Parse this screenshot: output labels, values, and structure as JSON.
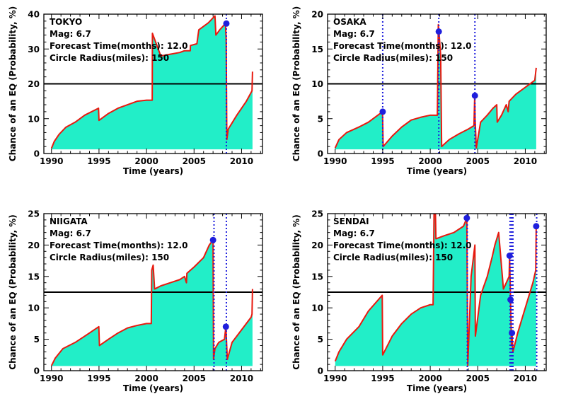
{
  "colors": {
    "fill": "#22eec8",
    "line": "#e8190f",
    "marker": "#1f1fdd",
    "vline": "#1f1fdd",
    "threshold": "#000000"
  },
  "chart_data": [
    {
      "type": "area",
      "xlabel": "Time (years)",
      "ylabel": "Chance of an EQ (Probability, %)",
      "xlim": [
        1989.2,
        2012.2
      ],
      "ylim": [
        0,
        40
      ],
      "xticks": [
        1990,
        1995,
        2000,
        2005,
        2010
      ],
      "yticks": [
        0,
        10,
        20,
        30,
        40
      ],
      "annotations": [
        "TOKYO",
        "Mag: 6.7",
        "Forecast Time(months): 12.0",
        "Circle Radius(miles): 150"
      ],
      "threshold": 20,
      "vlines": [
        2008.4
      ],
      "markers": [
        {
          "x": 2008.4,
          "y": 37.3
        }
      ],
      "series": [
        {
          "x": [
            1990.0,
            1990.3,
            1990.8,
            1991.5,
            1992.5,
            1993.5,
            1994.95,
            1995.0,
            1996.0,
            1997.0,
            1998.0,
            1999.0,
            2000.0,
            2000.6,
            2000.62,
            2001.5,
            2002.5,
            2003.5,
            2004.0,
            2004.6,
            2004.62,
            2005.3,
            2005.5,
            2006.5,
            2007.2,
            2007.3,
            2007.7,
            2008.3,
            2008.38,
            2008.45,
            2008.6,
            2009.5,
            2010.5,
            2011.1,
            2011.15
          ],
          "y": [
            1.5,
            3.5,
            5.5,
            7.5,
            9.0,
            11.0,
            13.0,
            9.5,
            11.5,
            13.0,
            14.0,
            15.0,
            15.3,
            15.3,
            34.5,
            28.0,
            28.5,
            29.0,
            29.5,
            29.5,
            31.0,
            31.5,
            35.5,
            37.5,
            39.5,
            34.0,
            35.5,
            37.3,
            33.0,
            4.0,
            7.0,
            11.0,
            15.0,
            18.0,
            23.5
          ]
        }
      ]
    },
    {
      "type": "area",
      "xlabel": "Time (years)",
      "ylabel": "Chance of an EQ (Probability, %)",
      "xlim": [
        1989.2,
        2012.2
      ],
      "ylim": [
        0,
        20
      ],
      "xticks": [
        1990,
        1995,
        2000,
        2005,
        2010
      ],
      "yticks": [
        0,
        5,
        10,
        15,
        20
      ],
      "annotations": [
        "OSAKA",
        "Mag: 6.7",
        "Forecast Time(months): 12.0",
        "Circle Radius(miles): 150"
      ],
      "threshold": 10,
      "vlines": [
        1995.0,
        2000.9,
        2004.7
      ],
      "markers": [
        {
          "x": 1995.0,
          "y": 6.0
        },
        {
          "x": 2000.9,
          "y": 17.5
        },
        {
          "x": 2004.7,
          "y": 8.3
        }
      ],
      "series": [
        {
          "x": [
            1990.0,
            1990.4,
            1991.2,
            1992.5,
            1993.5,
            1994.98,
            1995.05,
            1996.0,
            1997.0,
            1998.0,
            1999.0,
            2000.0,
            2000.75,
            2000.85,
            2000.92,
            2001.1,
            2001.2,
            2002.0,
            2003.0,
            2004.0,
            2004.6,
            2004.68,
            2004.72,
            2004.85,
            2005.3,
            2006.0,
            2006.6,
            2007.0,
            2007.05,
            2007.5,
            2008.0,
            2008.2,
            2008.3,
            2009.0,
            2010.0,
            2011.0,
            2011.15
          ],
          "y": [
            0.8,
            2.0,
            3.0,
            3.8,
            4.5,
            6.0,
            1.0,
            2.5,
            3.8,
            4.8,
            5.2,
            5.5,
            5.5,
            18.5,
            17.5,
            14.0,
            1.0,
            2.0,
            2.8,
            3.5,
            4.0,
            8.3,
            5.0,
            0.8,
            4.5,
            5.5,
            6.5,
            7.0,
            4.5,
            5.5,
            7.0,
            6.0,
            7.5,
            8.5,
            9.5,
            10.5,
            12.3
          ]
        }
      ]
    },
    {
      "type": "area",
      "xlabel": "Time (years)",
      "ylabel": "Chance of an EQ (Probability, %)",
      "xlim": [
        1989.2,
        2012.2
      ],
      "ylim": [
        0,
        25
      ],
      "xticks": [
        1990,
        1995,
        2000,
        2005,
        2010
      ],
      "yticks": [
        0,
        5,
        10,
        15,
        20,
        25
      ],
      "annotations": [
        "NIIGATA",
        "Mag: 6.7",
        "Forecast Time(months): 12.0",
        "Circle Radius(miles): 150"
      ],
      "threshold": 12.5,
      "vlines": [
        2007.1,
        2008.4
      ],
      "markers": [
        {
          "x": 2007.0,
          "y": 20.8
        },
        {
          "x": 2008.35,
          "y": 7.0
        }
      ],
      "series": [
        {
          "x": [
            1990.0,
            1990.4,
            1991.2,
            1992.5,
            1993.5,
            1994.98,
            1995.05,
            1996.0,
            1997.0,
            1998.0,
            1999.0,
            2000.0,
            2000.5,
            2000.55,
            2000.7,
            2000.85,
            2001.5,
            2002.5,
            2003.5,
            2004.0,
            2004.2,
            2004.25,
            2005.0,
            2006.0,
            2006.6,
            2007.0,
            2007.05,
            2007.2,
            2007.6,
            2008.2,
            2008.35,
            2008.5,
            2009.0,
            2010.0,
            2011.0,
            2011.1,
            2011.15
          ],
          "y": [
            0.8,
            2.0,
            3.5,
            4.5,
            5.5,
            7.0,
            4.0,
            5.0,
            6.0,
            6.8,
            7.2,
            7.5,
            7.5,
            16.0,
            16.8,
            13.0,
            13.5,
            14.0,
            14.5,
            15.0,
            14.0,
            15.5,
            16.5,
            18.0,
            20.0,
            20.8,
            1.8,
            3.5,
            4.5,
            5.0,
            7.0,
            1.8,
            4.5,
            6.5,
            8.5,
            9.0,
            13.0
          ]
        }
      ]
    },
    {
      "type": "area",
      "xlabel": "Time (years)",
      "ylabel": "Chance of an EQ (Probability, %)",
      "xlim": [
        1989.2,
        2012.2
      ],
      "ylim": [
        0,
        25
      ],
      "xticks": [
        1990,
        1995,
        2000,
        2005,
        2010
      ],
      "yticks": [
        0,
        5,
        10,
        15,
        20,
        25
      ],
      "annotations": [
        "SENDAI",
        "Mag: 6.7",
        "Forecast Time(months): 12.0",
        "Circle Radius(miles): 150"
      ],
      "threshold": 12.5,
      "vlines": [
        2003.9,
        2008.4,
        2008.55,
        2008.7,
        2011.2
      ],
      "markers": [
        {
          "x": 2003.85,
          "y": 24.3
        },
        {
          "x": 2008.35,
          "y": 18.3
        },
        {
          "x": 2008.45,
          "y": 11.3
        },
        {
          "x": 2008.6,
          "y": 6.0
        },
        {
          "x": 2011.15,
          "y": 23.0
        }
      ],
      "series": [
        {
          "x": [
            1990.0,
            1990.4,
            1991.2,
            1992.5,
            1993.5,
            1994.95,
            1995.0,
            1996.0,
            1997.0,
            1998.0,
            1999.0,
            2000.0,
            2000.3,
            2000.4,
            2000.55,
            2000.6,
            2001.5,
            2002.5,
            2003.5,
            2003.85,
            2003.95,
            2004.3,
            2004.7,
            2004.75,
            2005.3,
            2006.0,
            2006.5,
            2006.8,
            2007.2,
            2007.7,
            2008.3,
            2008.35,
            2008.45,
            2008.55,
            2008.6,
            2008.7,
            2009.2,
            2010.0,
            2010.8,
            2011.1,
            2011.15
          ],
          "y": [
            1.5,
            3.0,
            5.0,
            7.0,
            9.5,
            12.0,
            2.5,
            5.5,
            7.5,
            9.0,
            10.0,
            10.5,
            10.5,
            25.0,
            25.0,
            21.0,
            21.5,
            22.0,
            23.0,
            24.3,
            0.8,
            15.0,
            20.0,
            5.5,
            12.0,
            15.0,
            18.0,
            20.0,
            22.0,
            13.0,
            15.0,
            18.3,
            11.3,
            4.0,
            6.0,
            3.0,
            6.0,
            10.0,
            14.0,
            16.0,
            23.0
          ]
        }
      ]
    }
  ]
}
